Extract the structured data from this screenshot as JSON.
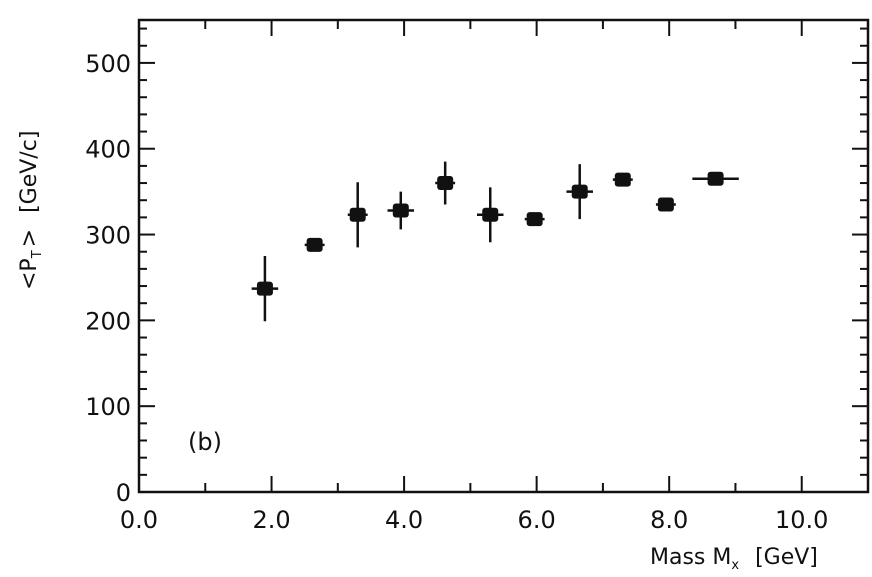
{
  "chart_data": {
    "type": "scatter",
    "panel_label": "(b)",
    "xlabel": "Mass M",
    "xlabel_subscript": "x",
    "xlabel_unit": "[GeV]",
    "ylabel": "<P",
    "ylabel_subscript": "T",
    "ylabel_close": ">",
    "ylabel_unit": "[GeV/c]",
    "xlim": [
      0.0,
      11.0
    ],
    "ylim": [
      0,
      550
    ],
    "x_ticks": [
      "0.0",
      "2.0",
      "4.0",
      "6.0",
      "8.0",
      "10.0"
    ],
    "x_tick_values": [
      0,
      2,
      4,
      6,
      8,
      10
    ],
    "y_ticks": [
      "0",
      "100",
      "200",
      "300",
      "400",
      "500"
    ],
    "y_tick_values": [
      0,
      100,
      200,
      300,
      400,
      500
    ],
    "grid": false,
    "points": [
      {
        "x": 1.9,
        "y": 237,
        "y_err_low": 38,
        "y_err_high": 38,
        "x_err": 0.2
      },
      {
        "x": 2.65,
        "y": 288,
        "y_err_low": 7,
        "y_err_high": 7,
        "x_err": 0.15
      },
      {
        "x": 3.3,
        "y": 323,
        "y_err_low": 38,
        "y_err_high": 38,
        "x_err": 0.15
      },
      {
        "x": 3.95,
        "y": 328,
        "y_err_low": 22,
        "y_err_high": 22,
        "x_err": 0.2
      },
      {
        "x": 4.62,
        "y": 360,
        "y_err_low": 25,
        "y_err_high": 25,
        "x_err": 0.15
      },
      {
        "x": 5.3,
        "y": 323,
        "y_err_low": 32,
        "y_err_high": 32,
        "x_err": 0.2
      },
      {
        "x": 5.97,
        "y": 318,
        "y_err_low": 6,
        "y_err_high": 6,
        "x_err": 0.15
      },
      {
        "x": 6.65,
        "y": 350,
        "y_err_low": 32,
        "y_err_high": 32,
        "x_err": 0.2
      },
      {
        "x": 7.3,
        "y": 364,
        "y_err_low": 6,
        "y_err_high": 6,
        "x_err": 0.15
      },
      {
        "x": 7.95,
        "y": 335,
        "y_err_low": 6,
        "y_err_high": 6,
        "x_err": 0.15
      },
      {
        "x": 8.7,
        "y": 365,
        "y_err_low": 6,
        "y_err_high": 6,
        "x_err": 0.35
      }
    ],
    "marker": "filled-square",
    "colors": {
      "ink": "#111111",
      "background": "#ffffff"
    }
  }
}
